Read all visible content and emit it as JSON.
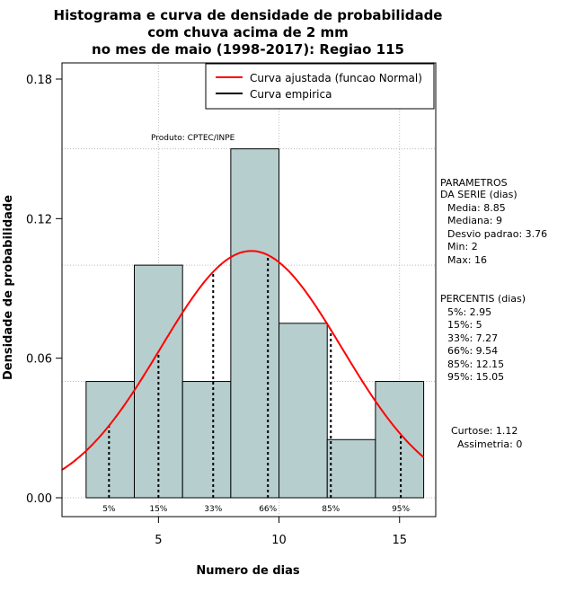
{
  "chart_data": {
    "type": "bar",
    "title_lines": [
      "Histograma e curva de densidade de probabilidade",
      "com chuva acima de 2 mm",
      "no mes de maio (1998-2017): Regiao 115"
    ],
    "xlabel": "Numero de dias",
    "ylabel": "Densidade de probabilidade",
    "xlim": [
      1,
      16.5
    ],
    "ylim": [
      0,
      0.18
    ],
    "x_ticks": [
      {
        "value": 5,
        "label": "5"
      },
      {
        "value": 10,
        "label": "10"
      },
      {
        "value": 15,
        "label": "15"
      }
    ],
    "y_ticks": [
      {
        "value": 0.0,
        "label": "0.00"
      },
      {
        "value": 0.06,
        "label": "0.06"
      },
      {
        "value": 0.12,
        "label": "0.12"
      },
      {
        "value": 0.18,
        "label": "0.18"
      }
    ],
    "grid_x": [
      5,
      10,
      15
    ],
    "grid_y": [
      0.0,
      0.05,
      0.1,
      0.15
    ],
    "bins": [
      {
        "x0": 2,
        "x1": 4,
        "density": 0.05
      },
      {
        "x0": 4,
        "x1": 6,
        "density": 0.1
      },
      {
        "x0": 6,
        "x1": 8,
        "density": 0.05
      },
      {
        "x0": 8,
        "x1": 10,
        "density": 0.15
      },
      {
        "x0": 10,
        "x1": 12,
        "density": 0.075
      },
      {
        "x0": 12,
        "x1": 14,
        "density": 0.025
      },
      {
        "x0": 14,
        "x1": 16,
        "density": 0.05
      }
    ],
    "normal_curve": {
      "mean": 8.85,
      "sd": 3.76,
      "x_from": 1.0,
      "x_to": 16.0
    },
    "percentile_markers": [
      {
        "label": "5%",
        "value": 2.95
      },
      {
        "label": "15%",
        "value": 5
      },
      {
        "label": "33%",
        "value": 7.27
      },
      {
        "label": "66%",
        "value": 9.54
      },
      {
        "label": "85%",
        "value": 12.15
      },
      {
        "label": "95%",
        "value": 15.05
      }
    ],
    "legend": {
      "position": "top-right",
      "entries": [
        {
          "label": "Curva ajustada (funcao Normal)",
          "color": "#ff0000"
        },
        {
          "label": "Curva empirica",
          "color": "#000000"
        }
      ]
    },
    "annotation_product": "Produto: CPTEC/INPE",
    "parameters_header": [
      "PARAMETROS",
      "DA SERIE (dias)"
    ],
    "parameters": [
      "Media: 8.85",
      "Mediana: 9",
      "Desvio padrao: 3.76",
      "Min: 2",
      "Max: 16"
    ],
    "percentis_header": "PERCENTIS (dias)",
    "percentis": [
      "5%: 2.95",
      "15%: 5",
      "33%: 7.27",
      "66%: 9.54",
      "85%: 12.15",
      "95%: 15.05"
    ],
    "shape_stats": [
      "Curtose: 1.12",
      "Assimetria: 0"
    ]
  },
  "colors": {
    "bar_fill": "#b7cece",
    "bar_stroke": "#000000",
    "curve": "#ff0000",
    "grid": "#bbbbbb",
    "dashed": "#000000"
  }
}
